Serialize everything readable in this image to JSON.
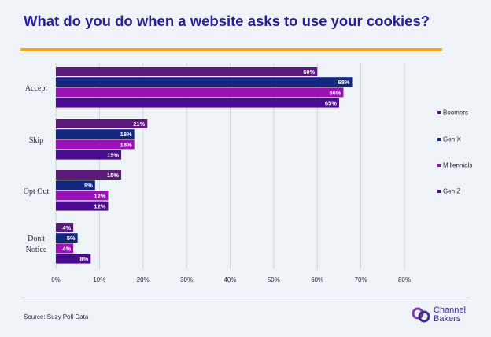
{
  "title": "What do you do when a website asks to use your cookies?",
  "source": "Source: Suzy Poll Data",
  "logo": {
    "line1": "Channel",
    "line2": "Bakers",
    "icon": "channel-bakers-logo-icon"
  },
  "colors": {
    "accent": "#f5a623",
    "title": "#2a1f9a"
  },
  "chart_data": {
    "type": "bar",
    "orientation": "horizontal",
    "categories": [
      "Accept",
      "Skip",
      "Opt Out",
      "Don't Notice"
    ],
    "category_lines": [
      [
        "Accept"
      ],
      [
        "Skip"
      ],
      [
        "Opt Out"
      ],
      [
        "Don't",
        "Notice"
      ]
    ],
    "series": [
      {
        "name": "Boomers",
        "color": "#5b1a7a",
        "values": [
          60,
          21,
          15,
          4
        ]
      },
      {
        "name": "Gen X",
        "color": "#13277f",
        "values": [
          68,
          18,
          9,
          5
        ]
      },
      {
        "name": "Millennials",
        "color": "#9a12b5",
        "values": [
          66,
          18,
          12,
          4
        ]
      },
      {
        "name": "Gen Z",
        "color": "#4b0b90",
        "values": [
          65,
          15,
          12,
          8
        ]
      }
    ],
    "value_labels": [
      [
        "60%",
        "68%",
        "66%",
        "65%"
      ],
      [
        "21%",
        "18%",
        "18%",
        "15%"
      ],
      [
        "15%",
        "9%",
        "12%",
        "12%"
      ],
      [
        "4%",
        "5%",
        "4%",
        "8%"
      ]
    ],
    "xlim": [
      0,
      80
    ],
    "xticks": [
      "0%",
      "10%",
      "20%",
      "30%",
      "40%",
      "50%",
      "60%",
      "70%",
      "80%"
    ],
    "grid": true,
    "legend_position": "right"
  }
}
